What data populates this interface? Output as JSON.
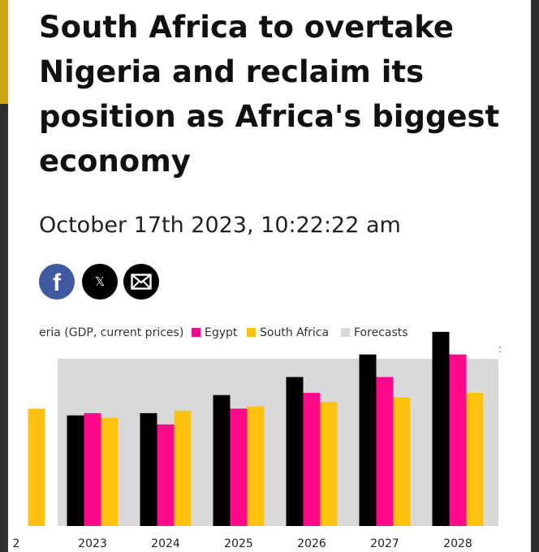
{
  "article": {
    "title": "South Africa to overtake Nigeria and reclaim its position as Africa's biggest economy",
    "date": "October 17th 2023, 10:22:22 am"
  },
  "share": {
    "facebook_glyph": "f",
    "x_glyph": "𝕏",
    "icons": [
      "facebook-icon",
      "x-icon",
      "email-icon"
    ]
  },
  "chart_data": {
    "type": "bar",
    "legend_fragment": "eria (GDP, current prices)",
    "series": [
      {
        "name": "Nigeria",
        "color": "#000000",
        "values": [
          null,
          49,
          50,
          58,
          66,
          76,
          86
        ]
      },
      {
        "name": "Egypt",
        "color": "#ff0a8c",
        "values": [
          null,
          50,
          45,
          52,
          59,
          66,
          76
        ]
      },
      {
        "name": "South Africa",
        "color": "#ffc20e",
        "values": [
          52,
          48,
          51,
          53,
          55,
          57,
          59
        ]
      }
    ],
    "legend": [
      "Egypt",
      "South Africa",
      "Forecasts"
    ],
    "forecast_color": "#d9d9d9",
    "categories": [
      "2",
      "2023",
      "2024",
      "2025",
      "2026",
      "2027",
      "2028"
    ],
    "forecast_start": "2023",
    "ylim": [
      0,
      100
    ],
    "legend_placement": "top"
  }
}
